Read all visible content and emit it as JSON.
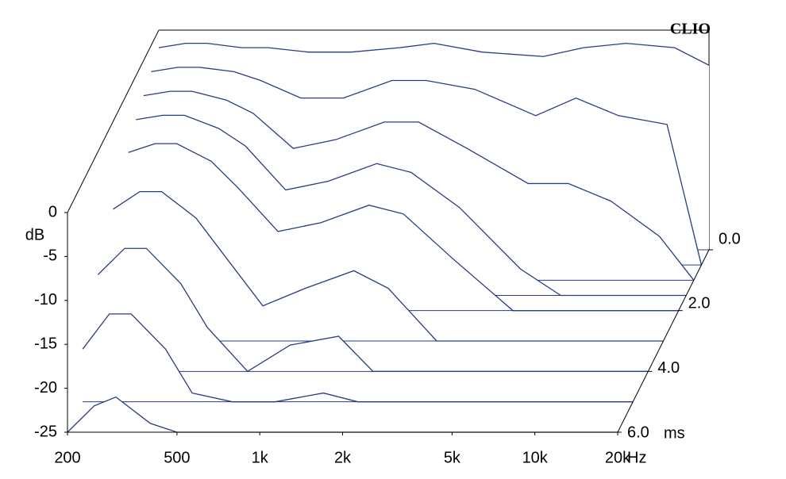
{
  "chart_data": {
    "type": "waterfall",
    "watermark": "CLIO",
    "x_unit": "Hz",
    "y_unit": "dB",
    "z_unit": "ms",
    "xlim": [
      200,
      20000
    ],
    "log_x": true,
    "xticks": [
      200,
      500,
      {
        "value": 1000,
        "label": "1k"
      },
      {
        "value": 2000,
        "label": "2k"
      },
      {
        "value": 5000,
        "label": "5k"
      },
      {
        "value": 10000,
        "label": "10k"
      },
      {
        "value": 20000,
        "label": "20k"
      }
    ],
    "ylim": [
      -25,
      0
    ],
    "yticks": [
      0,
      -5,
      -10,
      -15,
      -20,
      -25
    ],
    "zlim": [
      0,
      6
    ],
    "zticks": [
      {
        "value": 0,
        "label": "0.0"
      },
      {
        "value": 2,
        "label": "2.0"
      },
      {
        "value": 4,
        "label": "4.0"
      },
      {
        "value": 6,
        "label": "6.0"
      }
    ],
    "color": "#2b3a86",
    "x": [
      200,
      250,
      300,
      400,
      500,
      700,
      1000,
      1500,
      2000,
      3000,
      5000,
      7000,
      10000,
      15000,
      20000
    ],
    "series": [
      {
        "z": 0,
        "values": [
          -2,
          -1.5,
          -1.5,
          -2,
          -2,
          -2.5,
          -2.5,
          -2,
          -1.5,
          -2.5,
          -3,
          -2,
          -1.5,
          -2,
          -4
        ]
      },
      {
        "z": 0.5,
        "values": [
          -3,
          -2.5,
          -2.5,
          -3,
          -4,
          -6,
          -6,
          -4,
          -4,
          -5,
          -8,
          -6,
          -8,
          -9,
          -25
        ]
      },
      {
        "z": 1,
        "values": [
          -4,
          -3.5,
          -3.5,
          -4.5,
          -6,
          -10,
          -9,
          -7,
          -7,
          -10,
          -14,
          -14,
          -16,
          -20,
          -25
        ]
      },
      {
        "z": 1.5,
        "values": [
          -5,
          -4.5,
          -4.5,
          -6,
          -8,
          -13,
          -12,
          -10,
          -11,
          -15,
          -22,
          -25,
          -25,
          -25,
          -25
        ]
      },
      {
        "z": 2,
        "values": [
          -7,
          -6,
          -6,
          -8,
          -11,
          -16,
          -15,
          -13,
          -14,
          -19,
          -25,
          -25,
          -25,
          -25,
          -25
        ]
      },
      {
        "z": 3,
        "values": [
          -10,
          -8,
          -8,
          -11,
          -15,
          -21,
          -19,
          -17,
          -19,
          -25,
          -25,
          -25,
          -25,
          -25,
          -25
        ]
      },
      {
        "z": 4,
        "values": [
          -14,
          -11,
          -11,
          -15,
          -20,
          -25,
          -22,
          -21,
          -25,
          -25,
          -25,
          -25,
          -25,
          -25,
          -25
        ]
      },
      {
        "z": 5,
        "values": [
          -19,
          -15,
          -15,
          -19,
          -24,
          -25,
          -25,
          -24,
          -25,
          -25,
          -25,
          -25,
          -25,
          -25,
          -25
        ]
      },
      {
        "z": 6,
        "values": [
          -25,
          -22,
          -21,
          -24,
          -25,
          -25,
          -25,
          -25,
          -25,
          -25,
          -25,
          -25,
          -25,
          -25,
          -25
        ]
      }
    ]
  }
}
